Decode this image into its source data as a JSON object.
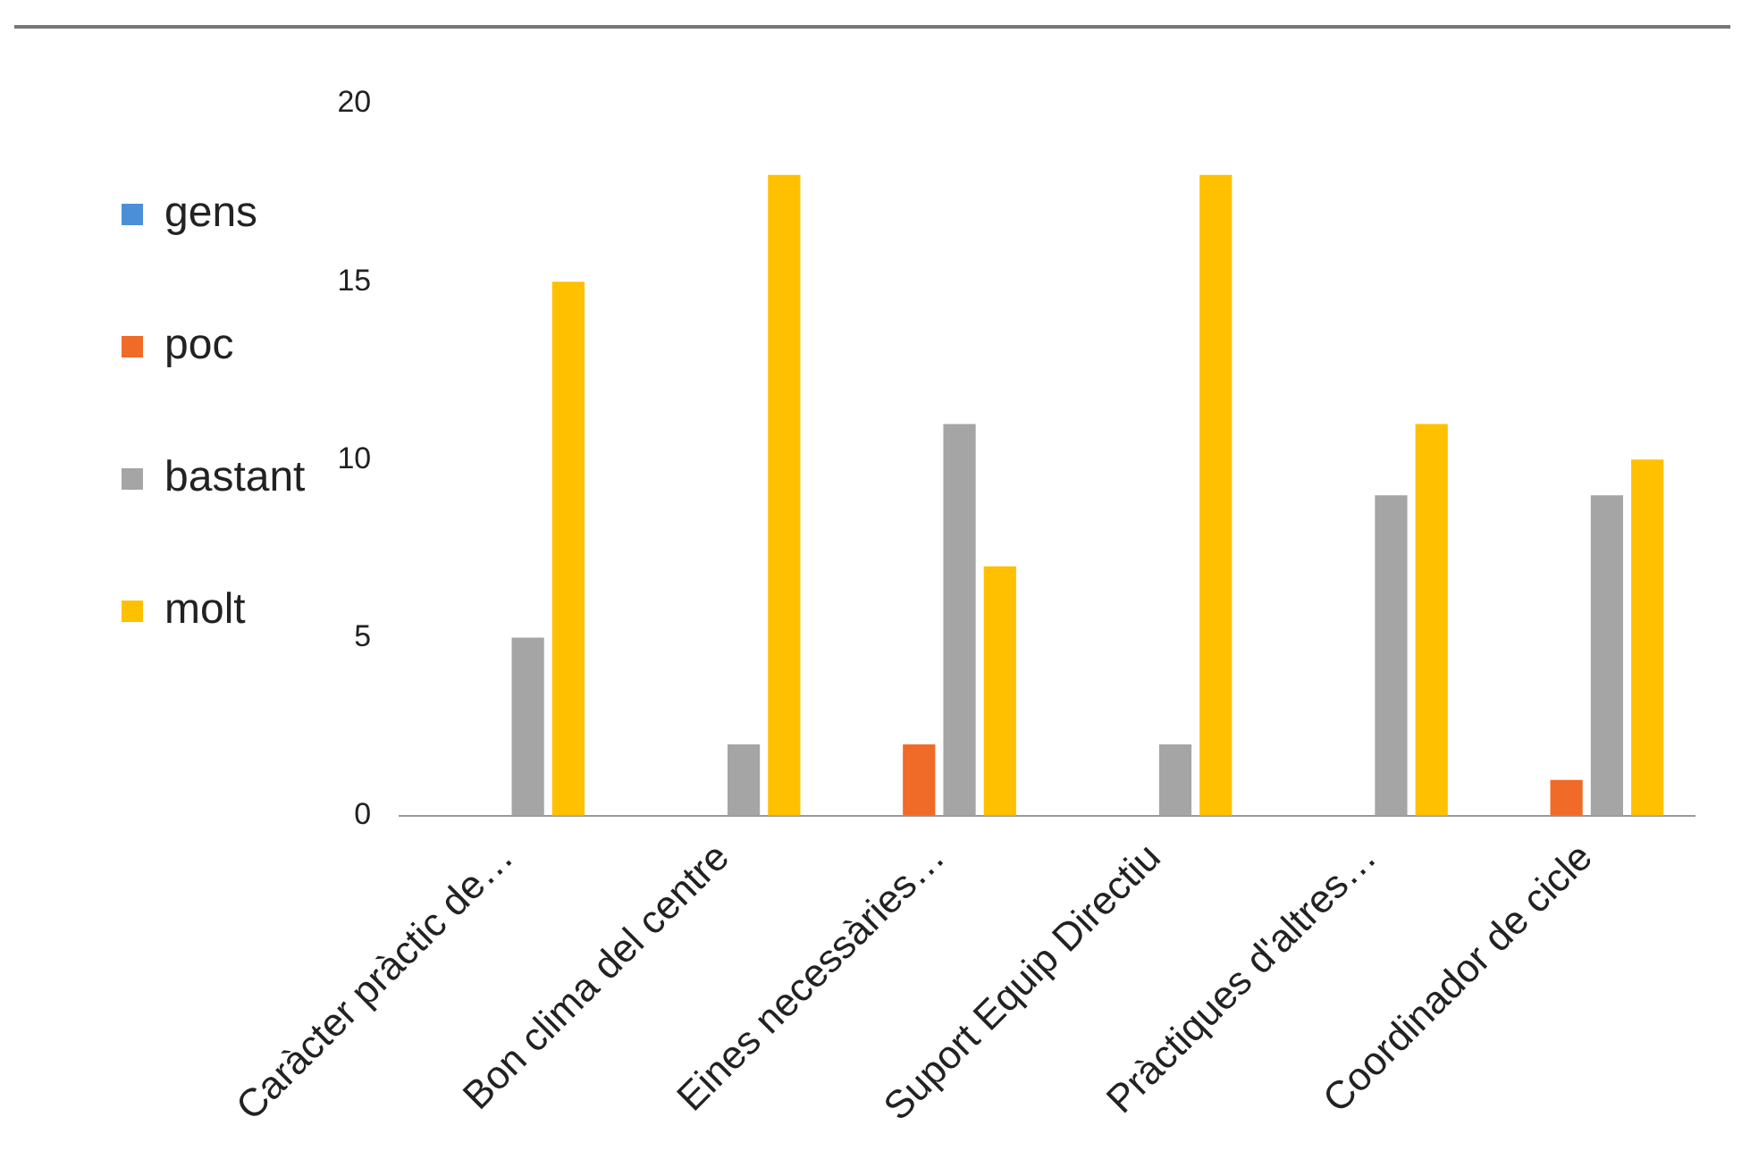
{
  "chart_data": {
    "type": "bar",
    "categories": [
      "Caràcter pràctic de…",
      "Bon clima del centre",
      "Eines necessàries…",
      "Suport Equip Directiu",
      "Pràctiques d'altres…",
      "Coordinador de cicle"
    ],
    "series": [
      {
        "name": "gens",
        "color": "#4a8fd8",
        "values": [
          0,
          0,
          0,
          0,
          null,
          null
        ]
      },
      {
        "name": "poc",
        "color": "#f06a28",
        "values": [
          0,
          0,
          2,
          0,
          0,
          1
        ]
      },
      {
        "name": "bastant",
        "color": "#a5a5a5",
        "values": [
          5,
          2,
          11,
          2,
          9,
          9
        ]
      },
      {
        "name": "molt",
        "color": "#ffc000",
        "values": [
          15,
          18,
          7,
          18,
          11,
          10
        ]
      }
    ],
    "ylim": [
      0,
      20
    ],
    "yticks": [
      0,
      5,
      10,
      15,
      20
    ],
    "grid": false,
    "legend": "left"
  }
}
